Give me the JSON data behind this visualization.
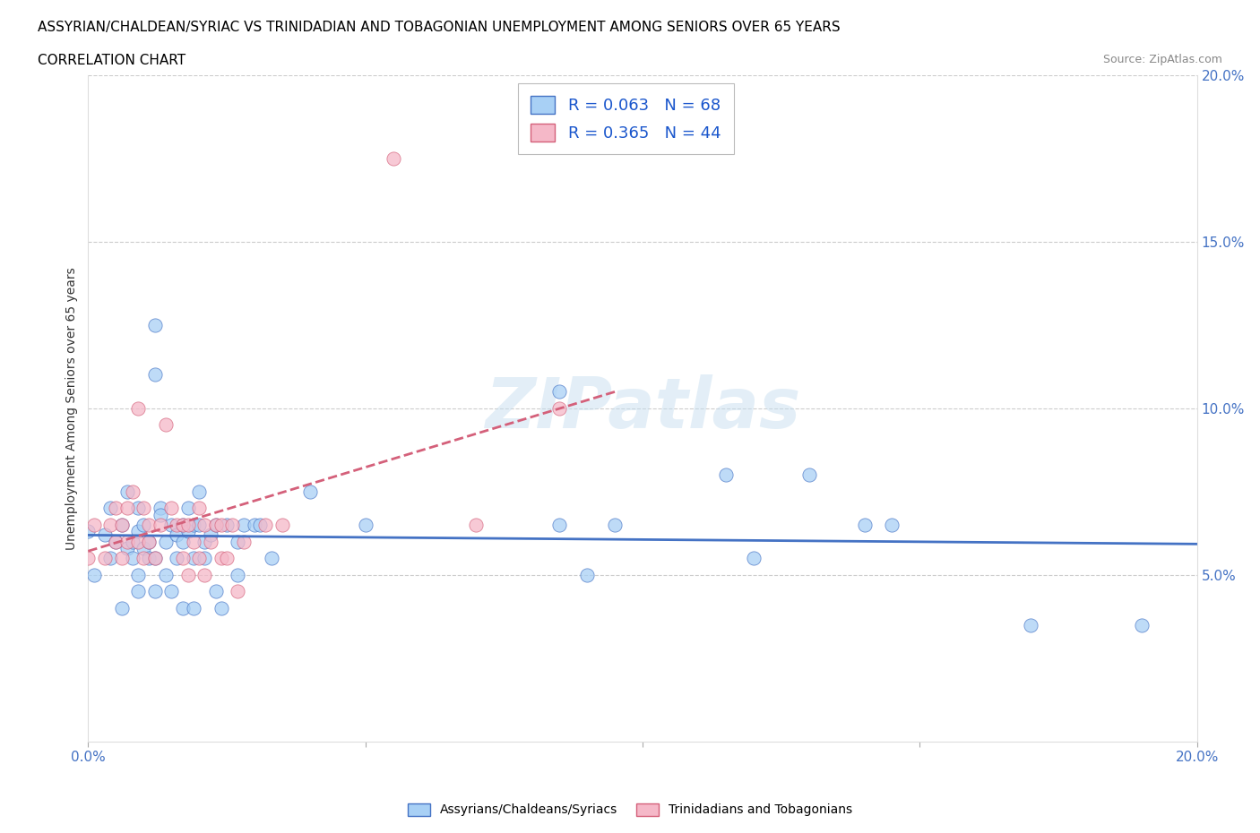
{
  "title": "ASSYRIAN/CHALDEAN/SYRIAC VS TRINIDADIAN AND TOBAGONIAN UNEMPLOYMENT AMONG SENIORS OVER 65 YEARS",
  "subtitle": "CORRELATION CHART",
  "source": "Source: ZipAtlas.com",
  "ylabel": "Unemployment Among Seniors over 65 years",
  "watermark": "ZIPatlas",
  "blue_R": 0.063,
  "blue_N": 68,
  "pink_R": 0.365,
  "pink_N": 44,
  "blue_color": "#a8d0f5",
  "pink_color": "#f5b8c8",
  "blue_line_color": "#4472c4",
  "pink_line_color": "#d4607a",
  "blue_points": [
    [
      0.0,
      0.063
    ],
    [
      0.001,
      0.05
    ],
    [
      0.003,
      0.062
    ],
    [
      0.004,
      0.055
    ],
    [
      0.004,
      0.07
    ],
    [
      0.005,
      0.06
    ],
    [
      0.006,
      0.065
    ],
    [
      0.006,
      0.04
    ],
    [
      0.007,
      0.058
    ],
    [
      0.007,
      0.075
    ],
    [
      0.008,
      0.06
    ],
    [
      0.008,
      0.055
    ],
    [
      0.009,
      0.063
    ],
    [
      0.009,
      0.07
    ],
    [
      0.009,
      0.05
    ],
    [
      0.009,
      0.045
    ],
    [
      0.01,
      0.065
    ],
    [
      0.01,
      0.058
    ],
    [
      0.011,
      0.06
    ],
    [
      0.011,
      0.055
    ],
    [
      0.012,
      0.125
    ],
    [
      0.012,
      0.11
    ],
    [
      0.012,
      0.055
    ],
    [
      0.012,
      0.045
    ],
    [
      0.013,
      0.07
    ],
    [
      0.013,
      0.068
    ],
    [
      0.014,
      0.06
    ],
    [
      0.014,
      0.05
    ],
    [
      0.015,
      0.065
    ],
    [
      0.015,
      0.045
    ],
    [
      0.016,
      0.062
    ],
    [
      0.016,
      0.055
    ],
    [
      0.017,
      0.065
    ],
    [
      0.017,
      0.06
    ],
    [
      0.017,
      0.04
    ],
    [
      0.018,
      0.07
    ],
    [
      0.018,
      0.063
    ],
    [
      0.019,
      0.065
    ],
    [
      0.019,
      0.055
    ],
    [
      0.019,
      0.04
    ],
    [
      0.02,
      0.075
    ],
    [
      0.02,
      0.065
    ],
    [
      0.021,
      0.06
    ],
    [
      0.021,
      0.055
    ],
    [
      0.022,
      0.062
    ],
    [
      0.023,
      0.065
    ],
    [
      0.023,
      0.045
    ],
    [
      0.024,
      0.04
    ],
    [
      0.025,
      0.065
    ],
    [
      0.027,
      0.06
    ],
    [
      0.027,
      0.05
    ],
    [
      0.028,
      0.065
    ],
    [
      0.03,
      0.065
    ],
    [
      0.031,
      0.065
    ],
    [
      0.033,
      0.055
    ],
    [
      0.04,
      0.075
    ],
    [
      0.05,
      0.065
    ],
    [
      0.085,
      0.105
    ],
    [
      0.085,
      0.065
    ],
    [
      0.09,
      0.05
    ],
    [
      0.095,
      0.065
    ],
    [
      0.115,
      0.08
    ],
    [
      0.12,
      0.055
    ],
    [
      0.13,
      0.08
    ],
    [
      0.14,
      0.065
    ],
    [
      0.145,
      0.065
    ],
    [
      0.17,
      0.035
    ],
    [
      0.19,
      0.035
    ]
  ],
  "pink_points": [
    [
      0.0,
      0.055
    ],
    [
      0.001,
      0.065
    ],
    [
      0.003,
      0.055
    ],
    [
      0.004,
      0.065
    ],
    [
      0.005,
      0.06
    ],
    [
      0.005,
      0.07
    ],
    [
      0.006,
      0.055
    ],
    [
      0.006,
      0.065
    ],
    [
      0.007,
      0.06
    ],
    [
      0.007,
      0.07
    ],
    [
      0.008,
      0.075
    ],
    [
      0.009,
      0.06
    ],
    [
      0.009,
      0.1
    ],
    [
      0.01,
      0.055
    ],
    [
      0.01,
      0.07
    ],
    [
      0.011,
      0.065
    ],
    [
      0.011,
      0.06
    ],
    [
      0.012,
      0.055
    ],
    [
      0.013,
      0.065
    ],
    [
      0.014,
      0.095
    ],
    [
      0.015,
      0.07
    ],
    [
      0.016,
      0.065
    ],
    [
      0.017,
      0.065
    ],
    [
      0.017,
      0.055
    ],
    [
      0.018,
      0.05
    ],
    [
      0.018,
      0.065
    ],
    [
      0.019,
      0.06
    ],
    [
      0.02,
      0.055
    ],
    [
      0.02,
      0.07
    ],
    [
      0.021,
      0.065
    ],
    [
      0.021,
      0.05
    ],
    [
      0.022,
      0.06
    ],
    [
      0.023,
      0.065
    ],
    [
      0.024,
      0.065
    ],
    [
      0.024,
      0.055
    ],
    [
      0.025,
      0.055
    ],
    [
      0.026,
      0.065
    ],
    [
      0.027,
      0.045
    ],
    [
      0.028,
      0.06
    ],
    [
      0.032,
      0.065
    ],
    [
      0.035,
      0.065
    ],
    [
      0.055,
      0.175
    ],
    [
      0.07,
      0.065
    ],
    [
      0.085,
      0.1
    ]
  ]
}
